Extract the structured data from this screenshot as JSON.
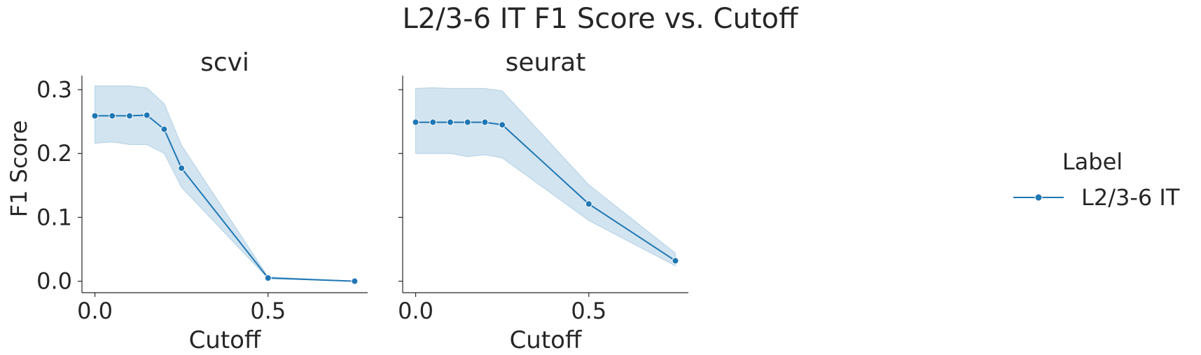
{
  "chart_data": {
    "type": "line",
    "title": "L2/3-6 IT F1 Score vs. Cutoff",
    "ylabel": "F1 Score",
    "ylim": [
      -0.018,
      0.322
    ],
    "yticks": [
      0.0,
      0.1,
      0.2,
      0.3
    ],
    "ytick_labels": [
      "0.0",
      "0.1",
      "0.2",
      "0.3"
    ],
    "legend": {
      "title": "Label",
      "position": "right",
      "entries": [
        "L2/3-6 IT"
      ]
    },
    "colors": {
      "line": "#1f77b4",
      "band": "#1f77b4"
    },
    "panels": [
      {
        "title": "scvi",
        "xlabel": "Cutoff",
        "xlim": [
          -0.0375,
          0.7875
        ],
        "xticks": [
          0.0,
          0.5
        ],
        "xtick_labels": [
          "0.0",
          "0.5"
        ],
        "series": [
          {
            "name": "L2/3-6 IT",
            "x": [
              0.0,
              0.05,
              0.1,
              0.15,
              0.2,
              0.25,
              0.5,
              0.75
            ],
            "y": [
              0.259,
              0.259,
              0.259,
              0.26,
              0.238,
              0.177,
              0.005,
              0.0
            ],
            "ci_upper": [
              0.306,
              0.306,
              0.306,
              0.303,
              0.278,
              0.213,
              0.007,
              0.0
            ],
            "ci_lower": [
              0.216,
              0.218,
              0.214,
              0.214,
              0.2,
              0.147,
              0.004,
              0.0
            ]
          }
        ]
      },
      {
        "title": "seurat",
        "xlabel": "Cutoff",
        "xlim": [
          -0.0375,
          0.7875
        ],
        "xticks": [
          0.0,
          0.5
        ],
        "xtick_labels": [
          "0.0",
          "0.5"
        ],
        "series": [
          {
            "name": "L2/3-6 IT",
            "x": [
              0.0,
              0.05,
              0.1,
              0.15,
              0.2,
              0.25,
              0.5,
              0.75
            ],
            "y": [
              0.249,
              0.249,
              0.249,
              0.249,
              0.249,
              0.245,
              0.121,
              0.032
            ],
            "ci_upper": [
              0.302,
              0.303,
              0.302,
              0.302,
              0.302,
              0.298,
              0.151,
              0.044
            ],
            "ci_lower": [
              0.2,
              0.2,
              0.2,
              0.195,
              0.198,
              0.193,
              0.095,
              0.024
            ]
          }
        ]
      }
    ]
  }
}
